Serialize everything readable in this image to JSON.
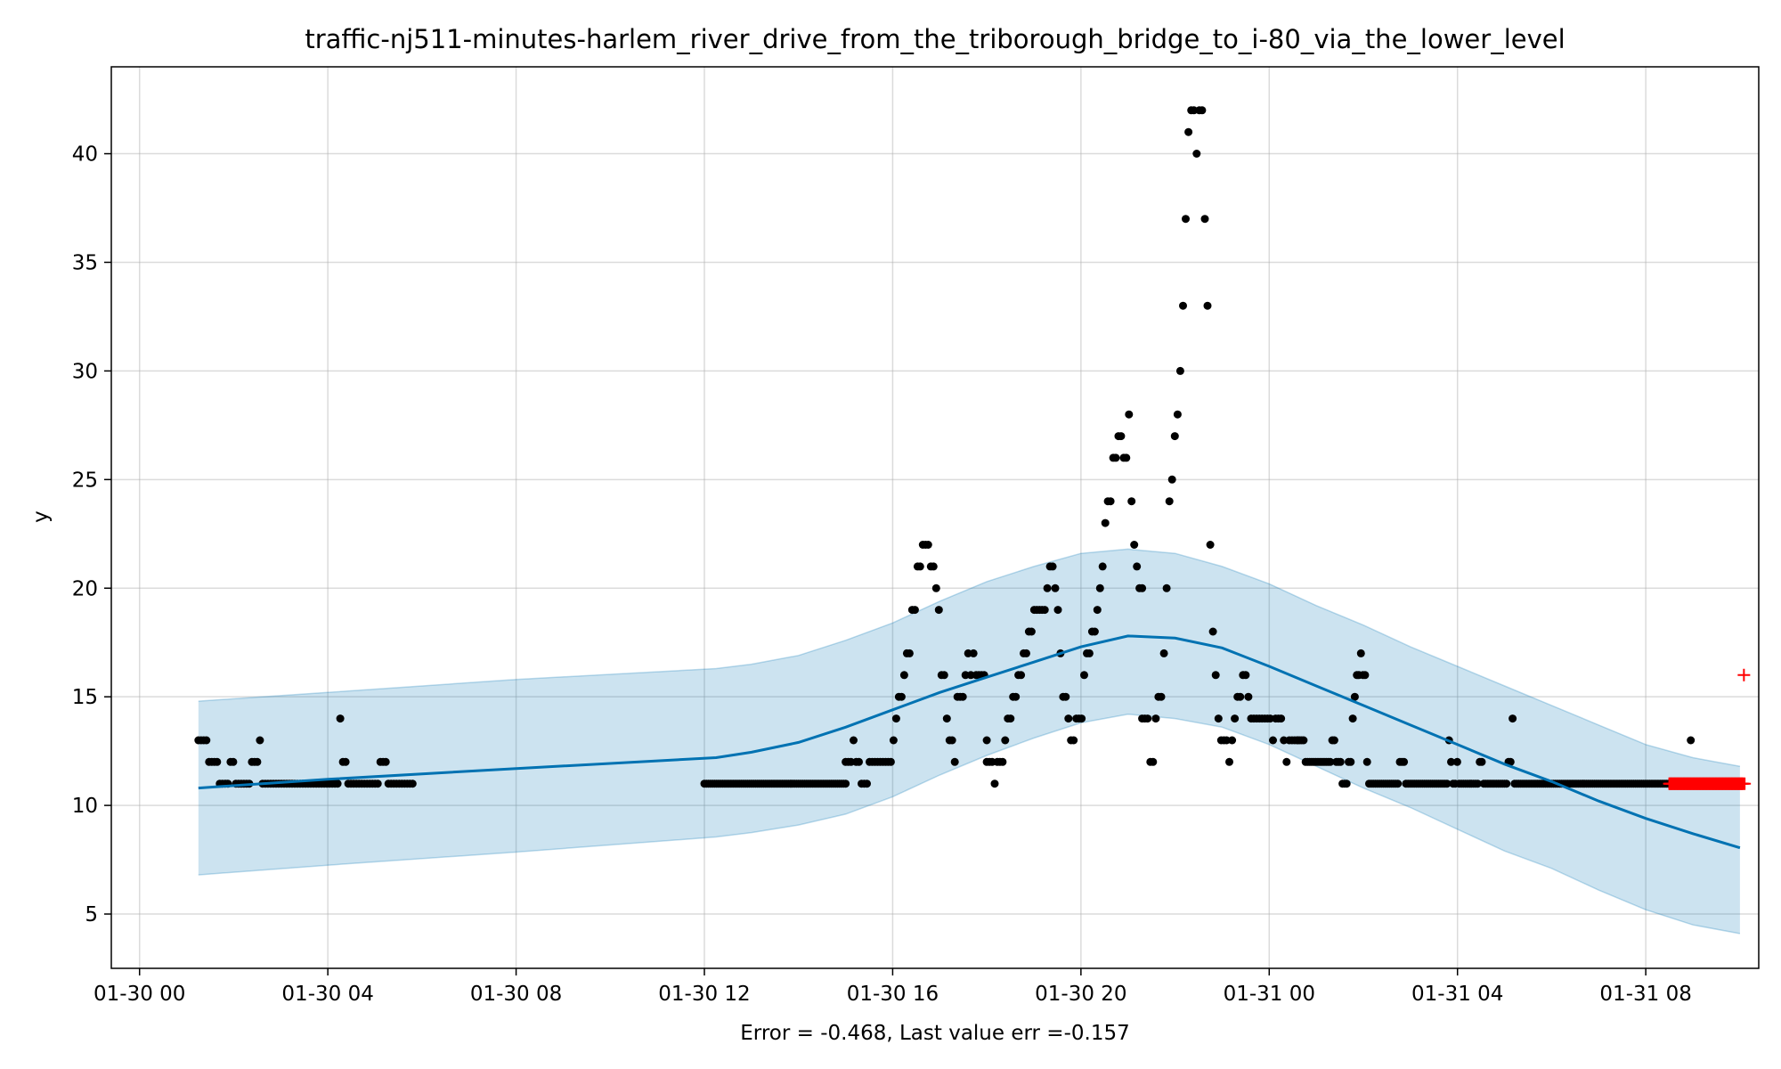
{
  "chart_data": {
    "type": "scatter",
    "title": "traffic-nj511-minutes-harlem_river_drive_from_the_triborough_bridge_to_i-80_via_the_lower_level",
    "xlabel": "Error = -0.468, Last value err =-0.157",
    "ylabel": "y",
    "xlim_hours": [
      -0.6,
      34.4
    ],
    "ylim": [
      2.5,
      44
    ],
    "grid": true,
    "x_ticks": [
      {
        "hour": 0,
        "label": "01-30 00"
      },
      {
        "hour": 4,
        "label": "01-30 04"
      },
      {
        "hour": 8,
        "label": "01-30 08"
      },
      {
        "hour": 12,
        "label": "01-30 12"
      },
      {
        "hour": 16,
        "label": "01-30 16"
      },
      {
        "hour": 20,
        "label": "01-30 20"
      },
      {
        "hour": 24,
        "label": "01-31 00"
      },
      {
        "hour": 28,
        "label": "01-31 04"
      },
      {
        "hour": 32,
        "label": "01-31 08"
      }
    ],
    "y_ticks": [
      5,
      10,
      15,
      20,
      25,
      30,
      35,
      40
    ],
    "colors": {
      "observed": "#000000",
      "forecast_line": "#0072B2",
      "forecast_band": "#0072B2",
      "test_points": "#ff0000"
    },
    "forecast": {
      "x": [
        1.25,
        4,
        8,
        12.25,
        13,
        14,
        15,
        16,
        17,
        18,
        19,
        20,
        21,
        22,
        23,
        24,
        25,
        26,
        27,
        28,
        29,
        30,
        31,
        32,
        33,
        34
      ],
      "yhat": [
        10.8,
        11.2,
        11.7,
        12.2,
        12.45,
        12.9,
        13.6,
        14.4,
        15.2,
        15.9,
        16.6,
        17.3,
        17.8,
        17.7,
        17.25,
        16.4,
        15.5,
        14.6,
        13.7,
        12.8,
        11.9,
        11.1,
        10.2,
        9.4,
        8.7,
        8.05
      ],
      "lower": [
        6.8,
        7.25,
        7.85,
        8.55,
        8.75,
        9.1,
        9.6,
        10.4,
        11.4,
        12.3,
        13.1,
        13.8,
        14.2,
        14.0,
        13.6,
        12.8,
        11.8,
        10.8,
        9.9,
        8.9,
        7.9,
        7.1,
        6.1,
        5.2,
        4.5,
        4.1
      ],
      "upper": [
        14.8,
        15.2,
        15.8,
        16.3,
        16.5,
        16.9,
        17.6,
        18.4,
        19.4,
        20.3,
        21.0,
        21.6,
        21.8,
        21.6,
        21.0,
        20.2,
        19.2,
        18.3,
        17.3,
        16.4,
        15.5,
        14.6,
        13.7,
        12.8,
        12.2,
        11.8
      ]
    },
    "observed_segments": [
      {
        "x0": 1.25,
        "x1": 5.8,
        "values": [
          13,
          13,
          13,
          13,
          12,
          12,
          12,
          12,
          11,
          11,
          11,
          11,
          12,
          12,
          11,
          11,
          11,
          11,
          11,
          11,
          12,
          12,
          12,
          13,
          11,
          11,
          11,
          11,
          11,
          11,
          11,
          11,
          11,
          11,
          11,
          11,
          11,
          11,
          11,
          11,
          11,
          11,
          11,
          11,
          11,
          11,
          11,
          11,
          11,
          11,
          11,
          11,
          11,
          14,
          12,
          12,
          11,
          11,
          11,
          11,
          11,
          11,
          11,
          11,
          11,
          11,
          11,
          11,
          12,
          12,
          12,
          11,
          11,
          11,
          11,
          11,
          11,
          11,
          11,
          11,
          11
        ]
      },
      {
        "x0": 12.0,
        "x1": 15.0,
        "values": [
          11,
          11,
          11,
          11,
          11,
          11,
          11,
          11,
          11,
          11,
          11,
          11,
          11,
          11,
          11,
          11,
          11,
          11,
          11,
          11,
          11,
          11,
          11,
          11,
          11,
          11,
          11,
          11,
          11,
          11,
          11,
          11,
          11,
          11,
          11,
          11,
          11,
          11,
          11,
          11,
          11,
          11,
          11,
          11,
          11,
          11,
          11,
          11,
          11,
          11,
          11,
          11,
          11,
          11,
          11,
          11,
          11,
          11,
          11,
          11,
          11,
          11,
          11,
          11,
          11,
          11,
          11,
          11,
          11,
          11
        ]
      },
      {
        "x0": 15.0,
        "x1": 18.0,
        "values": [
          12,
          12,
          12,
          13,
          12,
          12,
          11,
          11,
          11,
          12,
          12,
          12,
          12,
          12,
          12,
          12,
          12,
          12,
          13,
          14,
          15,
          15,
          16,
          17,
          17,
          19,
          19,
          21,
          21,
          22,
          22,
          22,
          21,
          21,
          20,
          19,
          16,
          16,
          14,
          13,
          13,
          12,
          15,
          15,
          15,
          16,
          17,
          16,
          17,
          16,
          16,
          16,
          16,
          13
        ]
      },
      {
        "x0": 18.0,
        "x1": 21.3,
        "values": [
          12,
          12,
          12,
          11,
          12,
          12,
          12,
          13,
          14,
          14,
          15,
          15,
          16,
          16,
          17,
          17,
          18,
          18,
          19,
          19,
          19,
          19,
          19,
          20,
          21,
          21,
          20,
          19,
          17,
          15,
          15,
          14,
          13,
          13,
          14,
          14,
          14,
          16,
          17,
          17,
          18,
          18,
          19,
          20,
          21,
          23,
          24,
          24,
          26,
          26,
          27,
          27,
          26,
          26,
          28,
          24,
          22,
          21,
          20,
          20
        ]
      },
      {
        "x0": 21.3,
        "x1": 24.6,
        "values": [
          14,
          14,
          14,
          12,
          12,
          14,
          15,
          15,
          17,
          20,
          24,
          25,
          27,
          28,
          30,
          33,
          37,
          41,
          42,
          42,
          40,
          42,
          42,
          37,
          33,
          22,
          18,
          16,
          14,
          13,
          13,
          13,
          12,
          13,
          14,
          15,
          15,
          16,
          16,
          15,
          14,
          14,
          14,
          14,
          14,
          14,
          14,
          14,
          13,
          14,
          14,
          14,
          13,
          12,
          13,
          13,
          13,
          13
        ]
      },
      {
        "x0": 24.6,
        "x1": 33.0,
        "values": [
          13,
          13,
          13,
          13,
          12,
          12,
          12,
          12,
          12,
          12,
          12,
          12,
          12,
          12,
          12,
          12,
          12,
          13,
          13,
          12,
          12,
          12,
          11,
          11,
          11,
          12,
          12,
          14,
          15,
          16,
          16,
          17,
          16,
          16,
          12,
          11,
          11,
          11,
          11,
          11,
          11,
          11,
          11,
          11,
          11,
          11,
          11,
          11,
          11,
          11,
          12,
          12,
          12,
          11,
          11,
          11,
          11,
          11,
          11,
          11,
          11,
          11,
          11,
          11,
          11,
          11,
          11,
          11,
          11,
          11,
          11,
          11,
          11,
          11,
          13,
          12,
          11,
          11,
          12,
          11,
          11,
          11,
          11,
          11,
          11,
          11,
          11,
          11,
          11,
          12,
          12,
          11,
          11,
          11,
          11,
          11,
          11,
          11,
          11,
          11,
          11,
          11,
          11,
          12,
          12,
          14,
          11,
          11,
          11,
          11,
          11,
          11,
          11,
          11,
          11,
          11,
          11,
          11,
          11,
          11,
          11,
          11,
          11,
          11,
          11,
          11,
          11,
          11,
          11,
          11,
          11,
          11,
          11,
          11,
          11,
          11,
          11,
          11,
          11,
          11,
          11,
          11,
          11,
          11,
          11,
          11,
          11,
          11,
          11,
          11,
          11,
          11,
          11,
          11,
          11,
          11,
          11,
          11,
          11,
          11,
          11,
          11,
          11,
          11,
          11,
          11,
          11,
          11,
          11,
          11,
          11,
          11,
          11,
          11,
          11,
          11,
          11,
          11,
          11,
          11,
          11,
          11,
          11,
          11,
          11,
          11,
          11,
          11,
          11,
          11,
          11,
          11,
          13,
          11
        ]
      }
    ],
    "test_points": {
      "x0": 32.5,
      "x1": 34.1,
      "values": [
        11,
        11,
        11,
        11,
        11,
        11,
        11,
        11,
        11,
        11,
        11,
        11,
        11,
        11,
        11,
        11,
        11,
        11,
        11,
        11,
        11,
        11,
        11,
        11,
        11,
        11,
        11,
        11,
        11,
        11,
        11,
        11,
        11,
        11,
        11,
        11,
        11,
        11,
        11,
        11,
        11,
        11,
        11,
        11,
        11,
        11,
        11,
        11,
        11,
        11,
        11,
        11,
        11,
        11,
        11,
        11,
        11,
        11,
        11,
        11,
        11,
        11,
        11,
        11,
        11,
        11,
        11,
        11,
        11,
        11,
        11,
        11,
        11,
        11,
        11,
        11,
        11,
        11,
        11,
        11,
        11,
        11,
        11,
        11,
        11,
        11,
        11,
        11,
        11,
        11,
        11,
        11,
        11,
        11,
        11,
        11,
        11,
        11,
        11,
        11,
        11,
        11,
        11,
        11,
        11,
        11,
        11,
        16,
        11
      ]
    }
  }
}
